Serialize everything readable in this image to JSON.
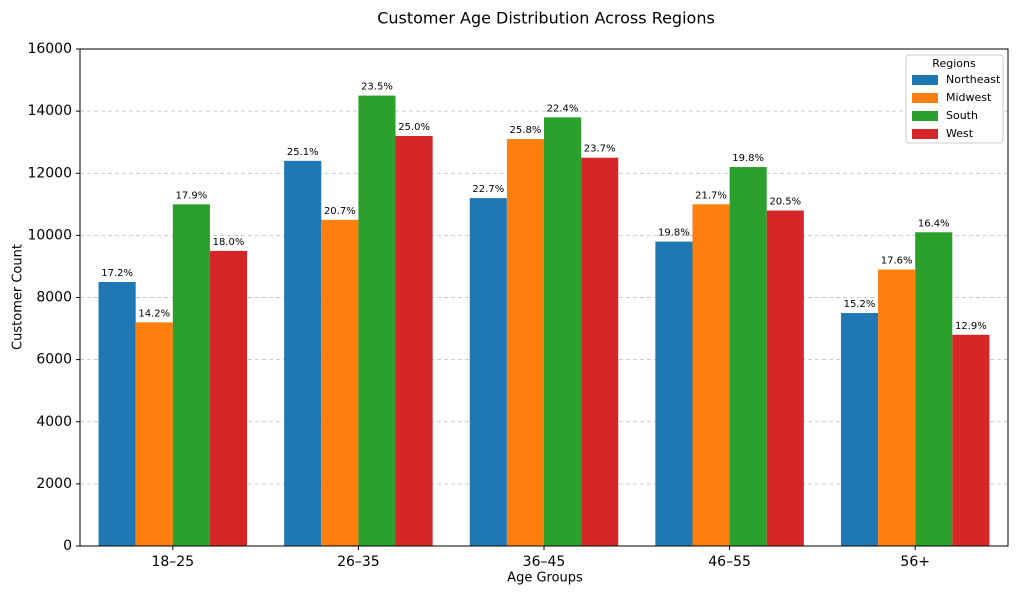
{
  "chart_data": {
    "type": "bar",
    "title": "Customer Age Distribution Across Regions",
    "x_label": "Age Groups",
    "y_label": "Customer Count",
    "categories": [
      "18–25",
      "26–35",
      "36–45",
      "46–55",
      "56+"
    ],
    "series": [
      {
        "name": "Northeast",
        "color": "#1f77b4",
        "values": [
          8500,
          12400,
          11200,
          9800,
          7500
        ],
        "value_labels": [
          "17.2%",
          "25.1%",
          "22.7%",
          "19.8%",
          "15.2%"
        ]
      },
      {
        "name": "Midwest",
        "color": "#ff7f0e",
        "values": [
          7200,
          10500,
          13100,
          11000,
          8900
        ],
        "value_labels": [
          "14.2%",
          "20.7%",
          "25.8%",
          "21.7%",
          "17.6%"
        ]
      },
      {
        "name": "South",
        "color": "#2ca02c",
        "values": [
          11000,
          14500,
          13800,
          12200,
          10100
        ],
        "value_labels": [
          "17.9%",
          "23.5%",
          "22.4%",
          "19.8%",
          "16.4%"
        ]
      },
      {
        "name": "West",
        "color": "#d62728",
        "values": [
          9500,
          13200,
          12500,
          10800,
          6800
        ],
        "value_labels": [
          "18.0%",
          "25.0%",
          "23.7%",
          "20.5%",
          "12.9%"
        ]
      }
    ],
    "legend_title": "Regions",
    "legend": "upper right",
    "ylim": [
      0,
      16000
    ],
    "yticks": [
      0,
      2000,
      4000,
      6000,
      8000,
      10000,
      12000,
      14000,
      16000
    ],
    "grid": true
  }
}
